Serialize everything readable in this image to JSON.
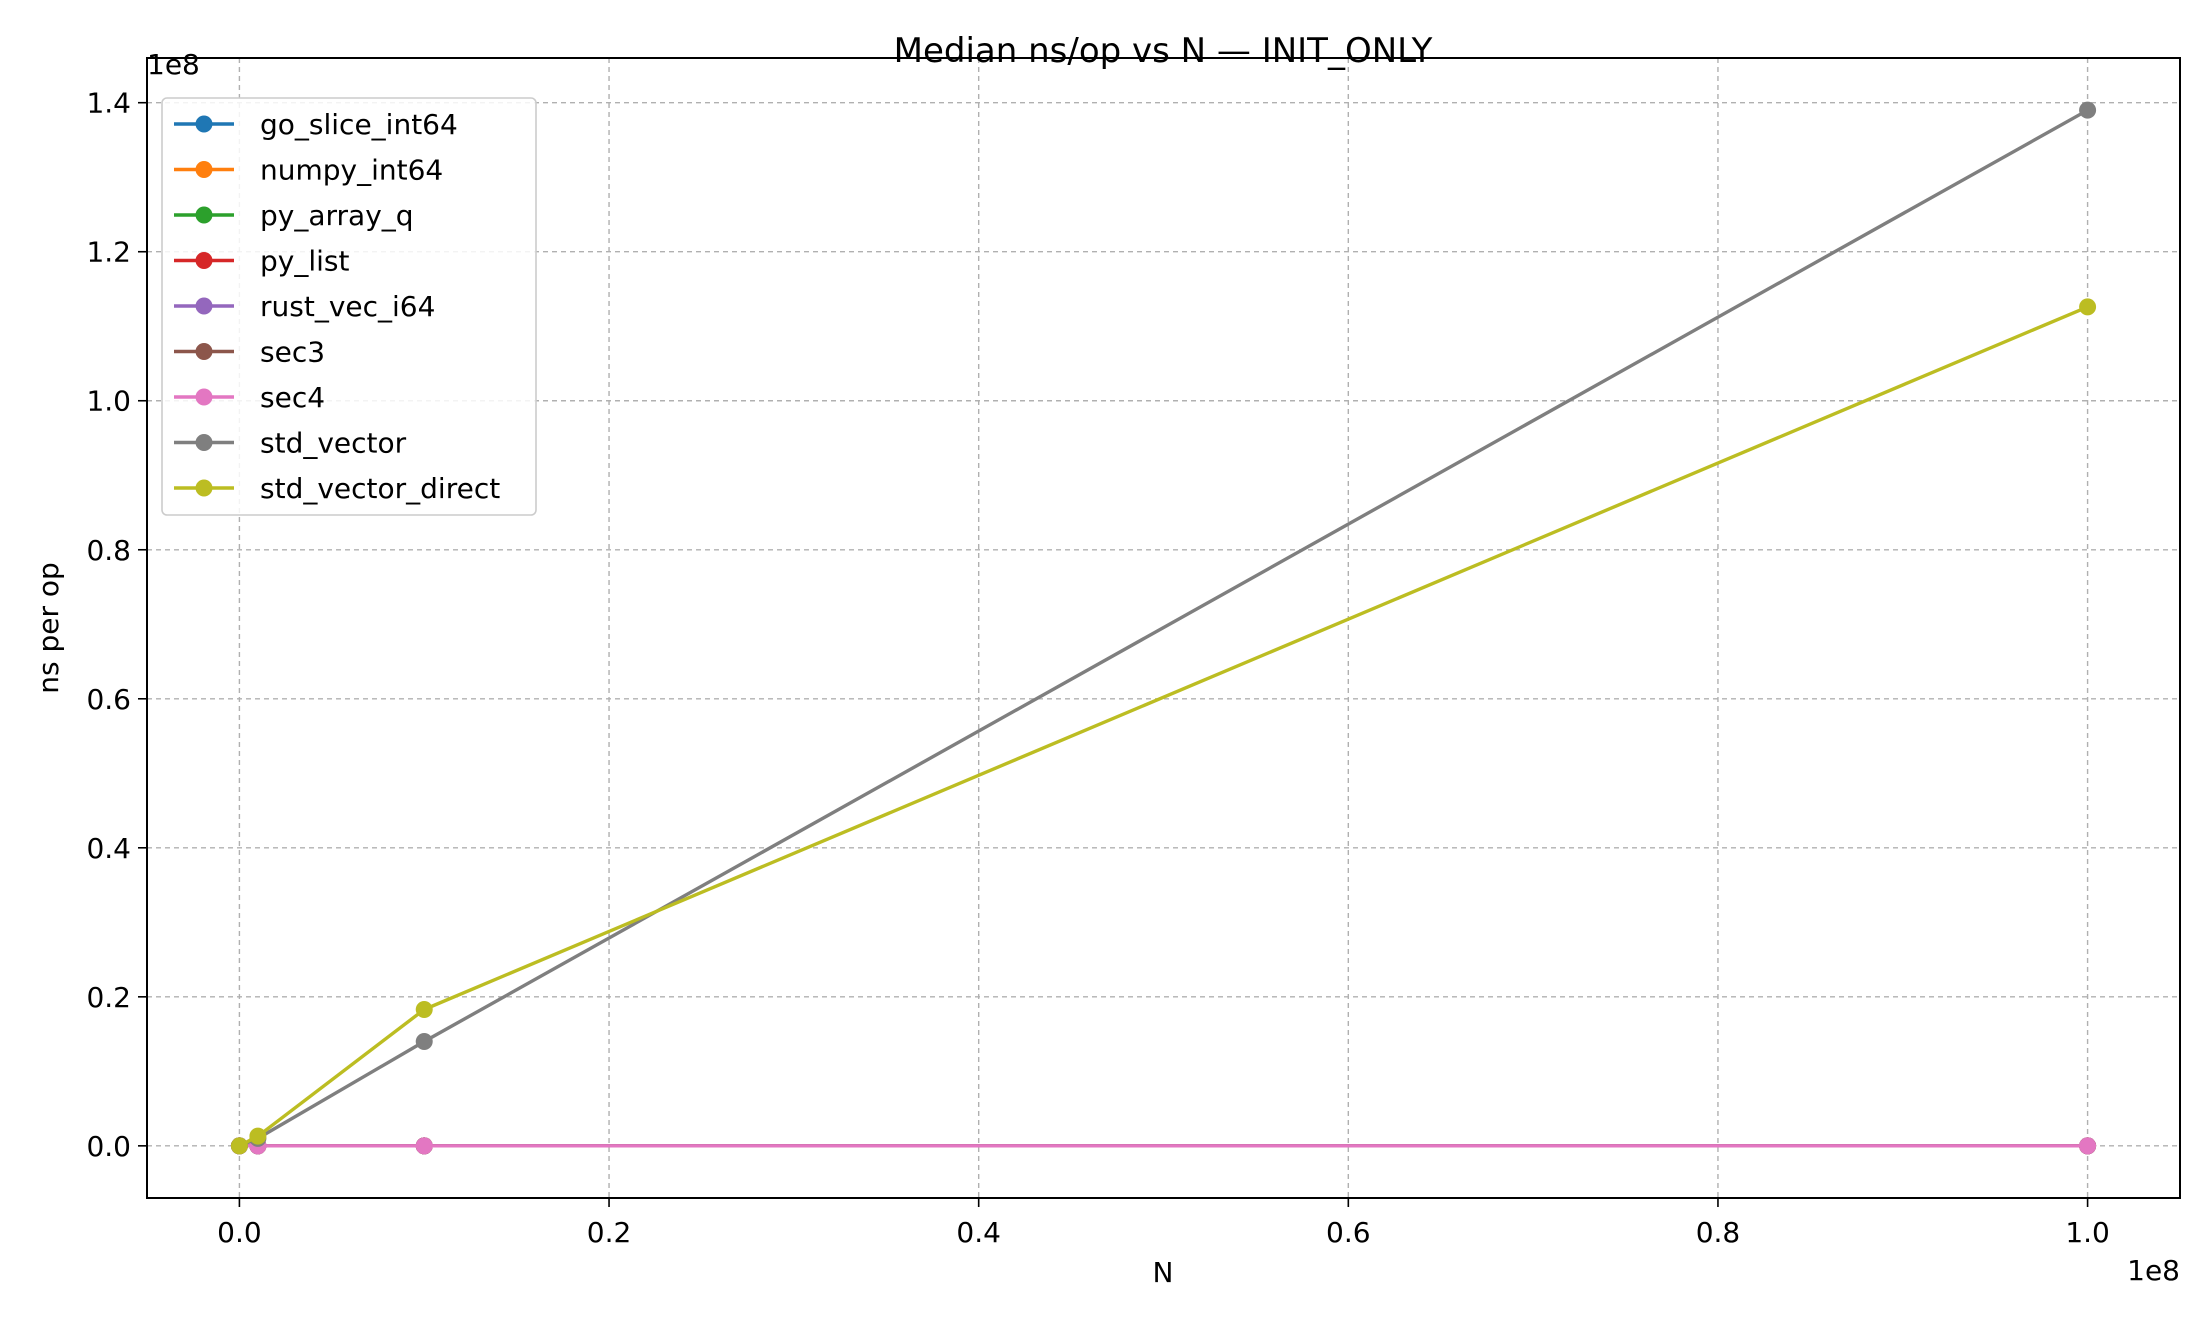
{
  "chart_data": {
    "type": "line",
    "title": "Median ns/op vs N — INIT_ONLY",
    "xlabel": "N",
    "ylabel": "ns per op",
    "x_offset_label": "1e8",
    "y_offset_label": "1e8",
    "xlim": [
      -5000000,
      105000000
    ],
    "ylim": [
      -7000000,
      146000000
    ],
    "x_ticks": [
      0,
      20000000,
      40000000,
      60000000,
      80000000,
      100000000
    ],
    "x_tick_labels": [
      "0.0",
      "0.2",
      "0.4",
      "0.6",
      "0.8",
      "1.0"
    ],
    "y_ticks": [
      0,
      20000000,
      40000000,
      60000000,
      80000000,
      100000000,
      120000000,
      140000000
    ],
    "y_tick_labels": [
      "0.0",
      "0.2",
      "0.4",
      "0.6",
      "0.8",
      "1.0",
      "1.2",
      "1.4"
    ],
    "grid": true,
    "legend_position": "top-left",
    "x": [
      1000,
      1000000,
      10000000,
      100000000
    ],
    "series": [
      {
        "name": "go_slice_int64",
        "color": "#1f77b4",
        "values": [
          0,
          0,
          0,
          0
        ]
      },
      {
        "name": "numpy_int64",
        "color": "#ff7f0e",
        "values": [
          0,
          0,
          0,
          0
        ]
      },
      {
        "name": "py_array_q",
        "color": "#2ca02c",
        "values": [
          0,
          0,
          0,
          0
        ]
      },
      {
        "name": "py_list",
        "color": "#d62728",
        "values": [
          0,
          0,
          0,
          0
        ]
      },
      {
        "name": "rust_vec_i64",
        "color": "#9467bd",
        "values": [
          0,
          0,
          0,
          0
        ]
      },
      {
        "name": "sec3",
        "color": "#8c564b",
        "values": [
          0,
          0,
          0,
          0
        ]
      },
      {
        "name": "sec4",
        "color": "#e377c2",
        "values": [
          0,
          0,
          0,
          0
        ]
      },
      {
        "name": "std_vector",
        "color": "#7f7f7f",
        "values": [
          0,
          1000000,
          14000000,
          139000000
        ]
      },
      {
        "name": "std_vector_direct",
        "color": "#bcbd22",
        "values": [
          0,
          1300000,
          18300000,
          112600000
        ]
      }
    ]
  }
}
